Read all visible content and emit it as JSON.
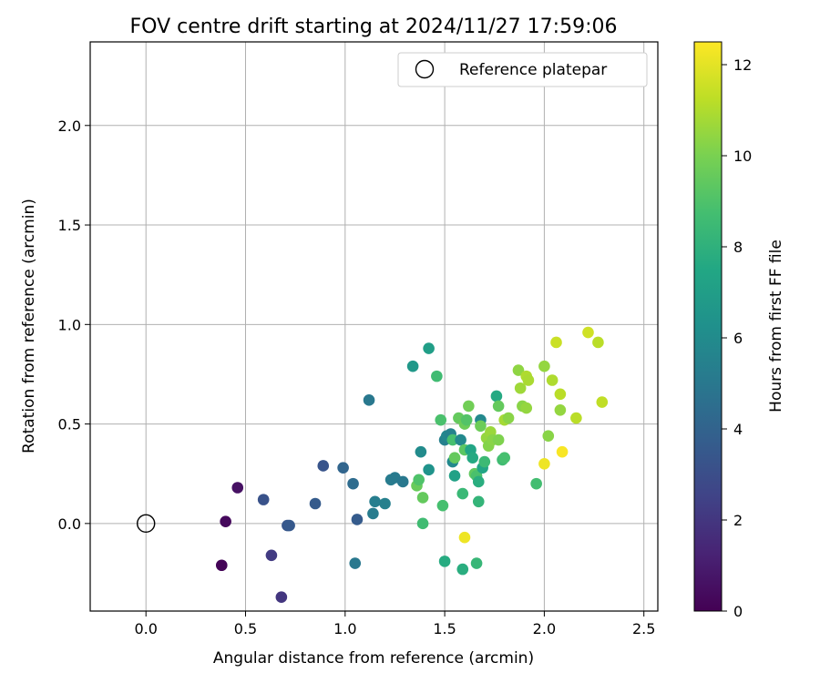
{
  "chart_data": {
    "type": "scatter",
    "title": "FOV centre drift starting at 2024/11/27 17:59:06",
    "xlabel": "Angular distance from reference (arcmin)",
    "ylabel": "Rotation from reference (arcmin)",
    "xlim": [
      -0.28,
      2.57
    ],
    "ylim": [
      -0.44,
      2.42
    ],
    "xticks": [
      0.0,
      0.5,
      1.0,
      1.5,
      2.0,
      2.5
    ],
    "yticks": [
      0.0,
      0.5,
      1.0,
      1.5,
      2.0
    ],
    "grid": true,
    "legend": {
      "position": "top-right",
      "entries": [
        "Reference platepar"
      ]
    },
    "reference_point": {
      "x": 0.0,
      "y": 0.0,
      "label": "Reference platepar"
    },
    "colorbar": {
      "label": "Hours from first FF file",
      "min": 0,
      "max": 12.5,
      "ticks": [
        0,
        2,
        4,
        6,
        8,
        10,
        12
      ],
      "colormap": "viridis"
    },
    "points": [
      {
        "x": 0.38,
        "y": -0.21,
        "c": 0.1
      },
      {
        "x": 0.4,
        "y": 0.01,
        "c": 0.3
      },
      {
        "x": 0.46,
        "y": 0.18,
        "c": 0.6
      },
      {
        "x": 0.63,
        "y": -0.16,
        "c": 2.2
      },
      {
        "x": 0.68,
        "y": -0.37,
        "c": 2.0
      },
      {
        "x": 0.59,
        "y": 0.12,
        "c": 3.2
      },
      {
        "x": 0.71,
        "y": -0.01,
        "c": 3.4
      },
      {
        "x": 0.72,
        "y": -0.01,
        "c": 3.5
      },
      {
        "x": 0.85,
        "y": 0.1,
        "c": 3.6
      },
      {
        "x": 0.89,
        "y": 0.29,
        "c": 3.3
      },
      {
        "x": 0.99,
        "y": 0.28,
        "c": 4.1
      },
      {
        "x": 1.04,
        "y": 0.2,
        "c": 4.4
      },
      {
        "x": 1.06,
        "y": 0.02,
        "c": 3.6
      },
      {
        "x": 1.05,
        "y": -0.2,
        "c": 5.0
      },
      {
        "x": 1.12,
        "y": 0.62,
        "c": 5.0
      },
      {
        "x": 1.14,
        "y": 0.05,
        "c": 5.2
      },
      {
        "x": 1.15,
        "y": 0.11,
        "c": 5.3
      },
      {
        "x": 1.2,
        "y": 0.1,
        "c": 5.4
      },
      {
        "x": 1.23,
        "y": 0.22,
        "c": 5.2
      },
      {
        "x": 1.25,
        "y": 0.23,
        "c": 5.1
      },
      {
        "x": 1.29,
        "y": 0.21,
        "c": 5.0
      },
      {
        "x": 1.34,
        "y": 0.79,
        "c": 6.7
      },
      {
        "x": 1.36,
        "y": 0.19,
        "c": 9.6
      },
      {
        "x": 1.37,
        "y": 0.22,
        "c": 9.0
      },
      {
        "x": 1.38,
        "y": 0.36,
        "c": 6.0
      },
      {
        "x": 1.39,
        "y": 0.13,
        "c": 9.5
      },
      {
        "x": 1.39,
        "y": 0.0,
        "c": 8.6
      },
      {
        "x": 1.42,
        "y": 0.88,
        "c": 7.0
      },
      {
        "x": 1.42,
        "y": 0.27,
        "c": 6.4
      },
      {
        "x": 1.46,
        "y": 0.74,
        "c": 8.6
      },
      {
        "x": 1.48,
        "y": 0.52,
        "c": 8.9
      },
      {
        "x": 1.49,
        "y": 0.09,
        "c": 8.8
      },
      {
        "x": 1.5,
        "y": -0.19,
        "c": 7.7
      },
      {
        "x": 1.5,
        "y": 0.42,
        "c": 5.4
      },
      {
        "x": 1.51,
        "y": 0.44,
        "c": 5.8
      },
      {
        "x": 1.53,
        "y": 0.45,
        "c": 5.5
      },
      {
        "x": 1.54,
        "y": 0.31,
        "c": 5.9
      },
      {
        "x": 1.54,
        "y": 0.42,
        "c": 8.8
      },
      {
        "x": 1.55,
        "y": 0.33,
        "c": 9.5
      },
      {
        "x": 1.55,
        "y": 0.24,
        "c": 7.2
      },
      {
        "x": 1.57,
        "y": 0.53,
        "c": 9.5
      },
      {
        "x": 1.58,
        "y": 0.42,
        "c": 5.9
      },
      {
        "x": 1.59,
        "y": -0.23,
        "c": 7.8
      },
      {
        "x": 1.59,
        "y": 0.15,
        "c": 8.4
      },
      {
        "x": 1.6,
        "y": 0.37,
        "c": 9.3
      },
      {
        "x": 1.6,
        "y": -0.07,
        "c": 12.2
      },
      {
        "x": 1.6,
        "y": 0.5,
        "c": 9.7
      },
      {
        "x": 1.61,
        "y": 0.52,
        "c": 9.1
      },
      {
        "x": 1.62,
        "y": 0.59,
        "c": 9.8
      },
      {
        "x": 1.63,
        "y": 0.37,
        "c": 7.4
      },
      {
        "x": 1.64,
        "y": 0.33,
        "c": 7.6
      },
      {
        "x": 1.65,
        "y": 0.25,
        "c": 9.4
      },
      {
        "x": 1.66,
        "y": -0.2,
        "c": 8.3
      },
      {
        "x": 1.66,
        "y": 0.24,
        "c": 8.9
      },
      {
        "x": 1.67,
        "y": 0.11,
        "c": 8.2
      },
      {
        "x": 1.67,
        "y": 0.21,
        "c": 7.8
      },
      {
        "x": 1.68,
        "y": 0.52,
        "c": 5.9
      },
      {
        "x": 1.68,
        "y": 0.49,
        "c": 9.7
      },
      {
        "x": 1.69,
        "y": 0.28,
        "c": 7.4
      },
      {
        "x": 1.7,
        "y": 0.31,
        "c": 8.5
      },
      {
        "x": 1.71,
        "y": 0.43,
        "c": 10.5
      },
      {
        "x": 1.72,
        "y": 0.39,
        "c": 10.2
      },
      {
        "x": 1.73,
        "y": 0.46,
        "c": 10.6
      },
      {
        "x": 1.74,
        "y": 0.42,
        "c": 10.3
      },
      {
        "x": 1.76,
        "y": 0.64,
        "c": 7.6
      },
      {
        "x": 1.77,
        "y": 0.59,
        "c": 9.5
      },
      {
        "x": 1.77,
        "y": 0.42,
        "c": 10.1
      },
      {
        "x": 1.79,
        "y": 0.32,
        "c": 8.6
      },
      {
        "x": 1.8,
        "y": 0.52,
        "c": 10.8
      },
      {
        "x": 1.8,
        "y": 0.33,
        "c": 8.8
      },
      {
        "x": 1.82,
        "y": 0.53,
        "c": 10.3
      },
      {
        "x": 1.87,
        "y": 0.77,
        "c": 10.4
      },
      {
        "x": 1.88,
        "y": 0.68,
        "c": 10.7
      },
      {
        "x": 1.89,
        "y": 0.59,
        "c": 10.3
      },
      {
        "x": 1.91,
        "y": 0.74,
        "c": 11.0
      },
      {
        "x": 1.91,
        "y": 0.58,
        "c": 10.5
      },
      {
        "x": 1.92,
        "y": 0.72,
        "c": 10.9
      },
      {
        "x": 1.96,
        "y": 0.2,
        "c": 8.7
      },
      {
        "x": 2.0,
        "y": 0.79,
        "c": 10.5
      },
      {
        "x": 2.0,
        "y": 0.3,
        "c": 12.2
      },
      {
        "x": 2.02,
        "y": 0.44,
        "c": 10.3
      },
      {
        "x": 2.04,
        "y": 0.72,
        "c": 11.0
      },
      {
        "x": 2.06,
        "y": 0.91,
        "c": 11.5
      },
      {
        "x": 2.08,
        "y": 0.65,
        "c": 11.2
      },
      {
        "x": 2.08,
        "y": 0.57,
        "c": 10.5
      },
      {
        "x": 2.09,
        "y": 0.36,
        "c": 12.4
      },
      {
        "x": 2.16,
        "y": 0.53,
        "c": 11.2
      },
      {
        "x": 2.22,
        "y": 0.96,
        "c": 11.6
      },
      {
        "x": 2.27,
        "y": 0.91,
        "c": 11.2
      },
      {
        "x": 2.29,
        "y": 0.61,
        "c": 11.3
      }
    ]
  }
}
